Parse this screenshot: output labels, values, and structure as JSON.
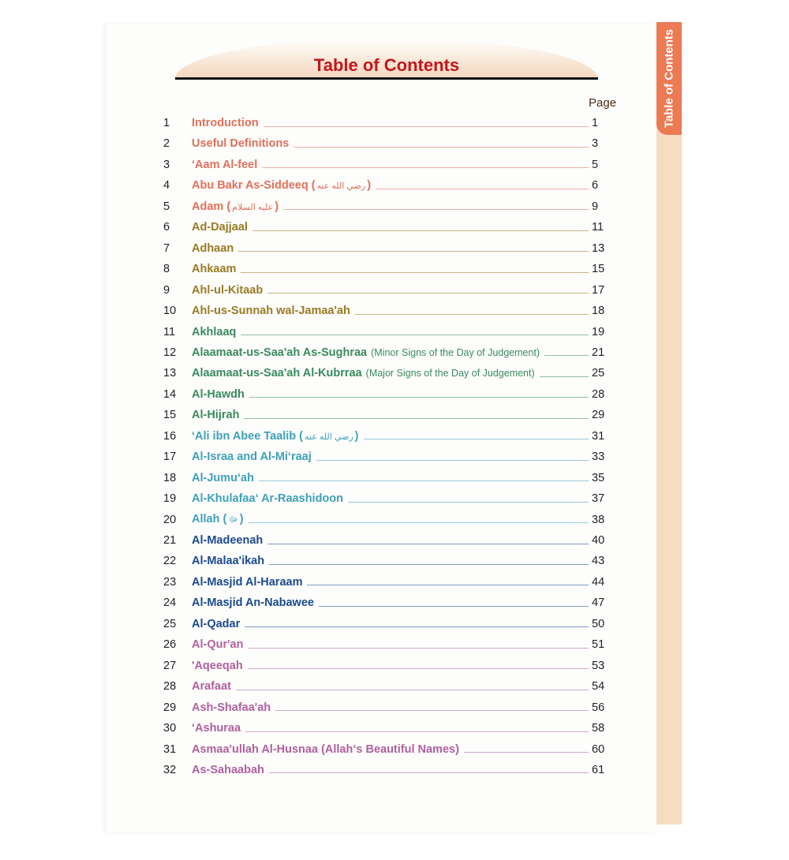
{
  "header": {
    "title": "Table of Contents",
    "page_label": "Page",
    "side_tab": "Table of Contents"
  },
  "colors": {
    "salmon": "#e0705a",
    "olive": "#9a7a22",
    "green": "#3a8a5e",
    "teal": "#3ea0b8",
    "blue": "#1a4a8c",
    "mauve": "#b0609e",
    "title_red": "#c4161c",
    "tab_orange": "#ec7a52"
  },
  "entries": [
    {
      "n": "1",
      "title": "Introduction",
      "page": "1",
      "color": "#e0705a"
    },
    {
      "n": "2",
      "title": "Useful Definitions",
      "page": "3",
      "color": "#e0705a"
    },
    {
      "n": "3",
      "title": "‘Aam Al-feel",
      "page": "5",
      "color": "#e0705a"
    },
    {
      "n": "4",
      "title": "Abu Bakr As-Siddeeq (",
      "honorific": "رضي الله عنه",
      "close": ")",
      "page": "6",
      "color": "#e0705a"
    },
    {
      "n": "5",
      "title": "Adam (",
      "honorific": "عليه السلام",
      "close": ")",
      "page": "9",
      "color": "#e0705a"
    },
    {
      "n": "6",
      "title": "Ad-Dajjaal",
      "page": "11",
      "color": "#9a7a22"
    },
    {
      "n": "7",
      "title": "Adhaan",
      "page": "13",
      "color": "#9a7a22"
    },
    {
      "n": "8",
      "title": "Ahkaam",
      "page": "15",
      "color": "#9a7a22"
    },
    {
      "n": "9",
      "title": "Ahl-ul-Kitaab",
      "page": "17",
      "color": "#9a7a22"
    },
    {
      "n": "10",
      "title": "Ahl-us-Sunnah wal-Jamaa'ah",
      "page": "18",
      "color": "#9a7a22"
    },
    {
      "n": "11",
      "title": "Akhlaaq",
      "page": "19",
      "color": "#3a8a5e"
    },
    {
      "n": "12",
      "title": "Alaamaat-us-Saa'ah As-Sughraa",
      "subtitle": "(Minor Signs of the Day of Judgement)",
      "page": "21",
      "color": "#3a8a5e"
    },
    {
      "n": "13",
      "title": "Alaamaat-us-Saa'ah Al-Kubrraa",
      "subtitle": "(Major Signs of the Day of Judgement)",
      "page": "25",
      "color": "#3a8a5e"
    },
    {
      "n": "14",
      "title": "Al-Hawdh",
      "page": "28",
      "color": "#3a8a5e"
    },
    {
      "n": "15",
      "title": "Al-Hijrah",
      "page": "29",
      "color": "#3a8a5e"
    },
    {
      "n": "16",
      "title": "‘Ali ibn Abee Taalib (",
      "honorific": "رضي الله عنه",
      "close": ")",
      "page": "31",
      "color": "#3ea0b8"
    },
    {
      "n": "17",
      "title": "Al-Israa and Al-Mi‘raaj",
      "page": "33",
      "color": "#3ea0b8"
    },
    {
      "n": "18",
      "title": "Al-Jumu‘ah",
      "page": "35",
      "color": "#3ea0b8"
    },
    {
      "n": "19",
      "title": "Al-Khulafaa‘ Ar-Raashidoon",
      "page": "37",
      "color": "#3ea0b8"
    },
    {
      "n": "20",
      "title": "Allah (",
      "honorific": "ﷻ",
      "close": ")",
      "page": "38",
      "color": "#3ea0b8"
    },
    {
      "n": "21",
      "title": "Al-Madeenah",
      "page": "40",
      "color": "#1a4a8c"
    },
    {
      "n": "22",
      "title": "Al-Malaa'ikah",
      "page": "43",
      "color": "#1a4a8c"
    },
    {
      "n": "23",
      "title": "Al-Masjid Al-Haraam",
      "page": "44",
      "color": "#1a4a8c"
    },
    {
      "n": "24",
      "title": "Al-Masjid An-Nabawee",
      "page": "47",
      "color": "#1a4a8c"
    },
    {
      "n": "25",
      "title": "Al-Qadar",
      "page": "50",
      "color": "#1a4a8c"
    },
    {
      "n": "26",
      "title": "Al-Qur'an",
      "page": "51",
      "color": "#b0609e"
    },
    {
      "n": "27",
      "title": "'Aqeeqah",
      "page": "53",
      "color": "#b0609e"
    },
    {
      "n": "28",
      "title": "Arafaat",
      "page": "54",
      "color": "#b0609e"
    },
    {
      "n": "29",
      "title": "Ash-Shafaa'ah",
      "page": "56",
      "color": "#b0609e"
    },
    {
      "n": "30",
      "title": "‘Ashuraa",
      "page": "58",
      "color": "#b0609e"
    },
    {
      "n": "31",
      "title": "Asmaa'ullah Al-Husnaa (Allah‘s Beautiful Names)",
      "page": "60",
      "color": "#b0609e"
    },
    {
      "n": "32",
      "title": "As-Sahaabah",
      "page": "61",
      "color": "#b0609e"
    }
  ]
}
